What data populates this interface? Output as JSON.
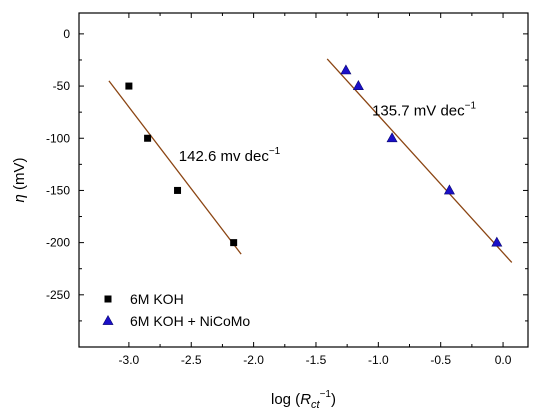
{
  "chart_data": {
    "type": "scatter",
    "title": "",
    "xlabel": {
      "prefix": "log (",
      "var": "R",
      "sub": "ct",
      "sup": "−1",
      "suffix": ")"
    },
    "ylabel": {
      "var": "η",
      "unit": " (mV)"
    },
    "xlim": [
      -3.4,
      0.2
    ],
    "ylim": [
      -300,
      20
    ],
    "x_ticks": [
      -3.0,
      -2.5,
      -2.0,
      -1.5,
      -1.0,
      -0.5,
      0.0
    ],
    "x_tick_labels": [
      "-3.0",
      "-2.5",
      "-2.0",
      "-1.5",
      "-1.0",
      "-0.5",
      "0.0"
    ],
    "y_ticks": [
      0,
      -50,
      -100,
      -150,
      -200,
      -250
    ],
    "y_tick_labels": [
      "0",
      "-50",
      "-100",
      "-150",
      "-200",
      "-250"
    ],
    "grid": false,
    "legend_position": "bottom-left",
    "series": [
      {
        "name": "6M KOH",
        "marker": "square",
        "color": "#000000",
        "x": [
          -3.0,
          -2.85,
          -2.61,
          -2.16
        ],
        "y": [
          -50,
          -100,
          -150,
          -200
        ],
        "fit_line": {
          "x": [
            -3.16,
            -2.1
          ],
          "y": [
            -45,
            -211
          ],
          "color": "#8b4513"
        },
        "annotation": {
          "base": "142.6 mv dec",
          "sup": "−1",
          "x": -2.6,
          "y": -122
        }
      },
      {
        "name": "6M KOH + NiCoMo",
        "marker": "triangle",
        "color": "#1a0fc8",
        "x": [
          -1.26,
          -1.16,
          -0.89,
          -0.43,
          -0.05
        ],
        "y": [
          -35,
          -50,
          -100,
          -150,
          -200
        ],
        "fit_line": {
          "x": [
            -1.41,
            0.07
          ],
          "y": [
            -24,
            -219
          ],
          "color": "#8b4513"
        },
        "annotation": {
          "base": "135.7 mV dec",
          "sup": "−1",
          "x": -1.05,
          "y": -78
        }
      }
    ]
  }
}
